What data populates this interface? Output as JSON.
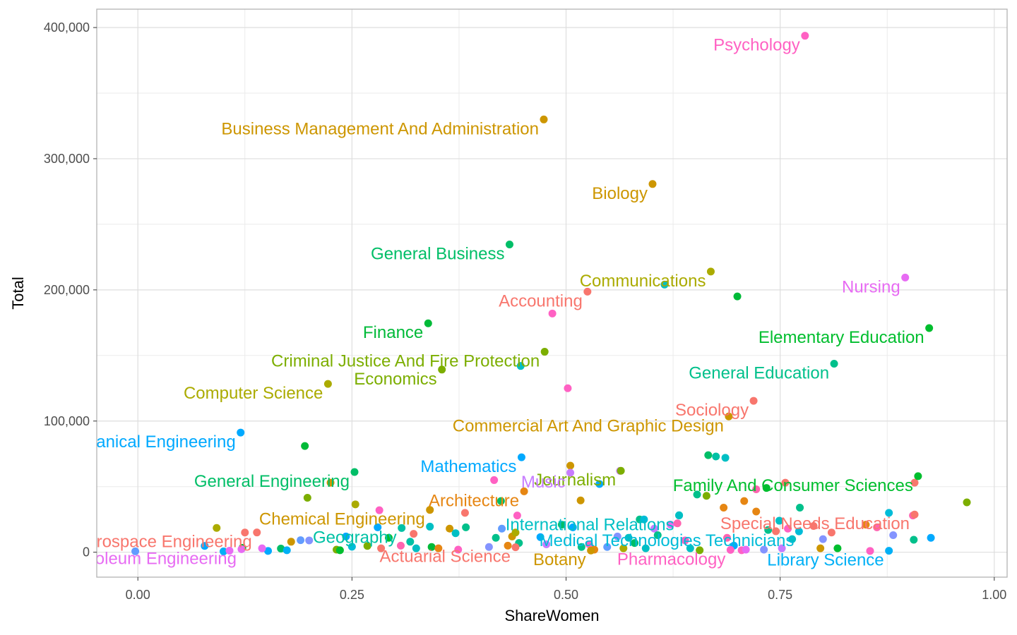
{
  "chart_data": {
    "type": "scatter",
    "title": "",
    "xlabel": "ShareWomen",
    "ylabel": "Total",
    "xlim": [
      -0.048,
      1.015
    ],
    "ylim": [
      -19000,
      414000
    ],
    "x_ticks": [
      {
        "value": 0,
        "label": "0.00"
      },
      {
        "value": 0.25,
        "label": "0.25"
      },
      {
        "value": 0.5,
        "label": "0.50"
      },
      {
        "value": 0.75,
        "label": "0.75"
      },
      {
        "value": 1.0,
        "label": "1.00"
      }
    ],
    "y_ticks": [
      {
        "value": 0,
        "label": "0"
      },
      {
        "value": 100000,
        "label": "100,000"
      },
      {
        "value": 200000,
        "label": "200,000"
      },
      {
        "value": 300000,
        "label": "300,000"
      },
      {
        "value": 400000,
        "label": "400,000"
      }
    ],
    "grid": true,
    "legend": "none",
    "labeled_points": [
      {
        "label": "Psychology",
        "x": 0.779,
        "y": 393735,
        "color": "#ff61c3"
      },
      {
        "label": "Business Management And Administration",
        "x": 0.474,
        "y": 329927,
        "color": "#cd9600"
      },
      {
        "label": "Biology",
        "x": 0.601,
        "y": 280709,
        "color": "#cd9600"
      },
      {
        "label": "General Business",
        "x": 0.434,
        "y": 234590,
        "color": "#00be67"
      },
      {
        "label": "Communications",
        "x": 0.669,
        "y": 213996,
        "color": "#abab00"
      },
      {
        "label": "Nursing",
        "x": 0.896,
        "y": 209394,
        "color": "#e76bf3"
      },
      {
        "label": "Accounting",
        "x": 0.525,
        "y": 198633,
        "color": "#f8766d"
      },
      {
        "label": "Finance",
        "x": 0.339,
        "y": 174506,
        "color": "#00ba38"
      },
      {
        "label": "Elementary Education",
        "x": 0.924,
        "y": 170862,
        "color": "#00be2e"
      },
      {
        "label": "Criminal Justice And Fire Protection",
        "x": 0.475,
        "y": 152824,
        "color": "#7cae00"
      },
      {
        "label": "General Education",
        "x": 0.813,
        "y": 143718,
        "color": "#00c08b"
      },
      {
        "label": "Economics",
        "x": 0.355,
        "y": 139247,
        "color": "#7cae00"
      },
      {
        "label": "Computer Science",
        "x": 0.222,
        "y": 128319,
        "color": "#abab00"
      },
      {
        "label": "Sociology",
        "x": 0.719,
        "y": 115433,
        "color": "#f8766d"
      },
      {
        "label": "Commercial Art And Graphic Design",
        "x": 0.69,
        "y": 103480,
        "color": "#cd9600"
      },
      {
        "label": "Mechanical Engineering",
        "x": 0.12,
        "y": 91227,
        "color": "#00a9ff"
      },
      {
        "label": "Mathematics",
        "x": 0.448,
        "y": 72397,
        "color": "#00a9ff"
      },
      {
        "label": "Journalism",
        "x": 0.564,
        "y": 62102,
        "color": "#7cae00"
      },
      {
        "label": "General Engineering",
        "x": 0.253,
        "y": 61152,
        "color": "#00be67"
      },
      {
        "label": "Music",
        "x": 0.505,
        "y": 60633,
        "color": "#c77cff"
      },
      {
        "label": "Family And Consumer Sciences",
        "x": 0.911,
        "y": 58001,
        "color": "#00be2e"
      },
      {
        "label": "Architecture",
        "x": 0.451,
        "y": 46420,
        "color": "#e68613"
      },
      {
        "label": "Chemical Engineering",
        "x": 0.341,
        "y": 32260,
        "color": "#cd9600"
      },
      {
        "label": "International Relations",
        "x": 0.632,
        "y": 28187,
        "color": "#00bfc4"
      },
      {
        "label": "Special Needs Education",
        "x": 0.907,
        "y": 28739,
        "color": "#f8766d"
      },
      {
        "label": "Geography",
        "x": 0.308,
        "y": 18480,
        "color": "#00c1a5"
      },
      {
        "label": "Aerospace Engineering",
        "x": 0.139,
        "y": 15058,
        "color": "#f8766d"
      },
      {
        "label": "Medical Technologies Technicians",
        "x": 0.772,
        "y": 15914,
        "color": "#00bcd8"
      },
      {
        "label": "Actuarial Science",
        "x": 0.441,
        "y": 3777,
        "color": "#f8766d"
      },
      {
        "label": "Botany",
        "x": 0.529,
        "y": 1329,
        "color": "#cd9600"
      },
      {
        "label": "Pharmacology",
        "x": 0.692,
        "y": 1762,
        "color": "#ff61c3"
      },
      {
        "label": "Library Science",
        "x": 0.877,
        "y": 1098,
        "color": "#00b0f6"
      },
      {
        "label": "Petroleum Engineering",
        "x": 0.121,
        "y": 2339,
        "color": "#e76bf3"
      }
    ],
    "points": [
      {
        "x": -0.003,
        "y": 720,
        "color": "#619cff"
      },
      {
        "x": 0.078,
        "y": 4800,
        "color": "#00a9ff"
      },
      {
        "x": 0.1,
        "y": 600,
        "color": "#00b0f6"
      },
      {
        "x": 0.107,
        "y": 1200,
        "color": "#e76bf3"
      },
      {
        "x": 0.122,
        "y": 3300,
        "color": "#00ba38"
      },
      {
        "x": 0.152,
        "y": 1000,
        "color": "#00a9ff"
      },
      {
        "x": 0.125,
        "y": 15000,
        "color": "#f8766d"
      },
      {
        "x": 0.092,
        "y": 18500,
        "color": "#abab00"
      },
      {
        "x": 0.167,
        "y": 2800,
        "color": "#00be67"
      },
      {
        "x": 0.179,
        "y": 8000,
        "color": "#cd9600"
      },
      {
        "x": 0.19,
        "y": 9200,
        "color": "#619cff"
      },
      {
        "x": 0.195,
        "y": 81000,
        "color": "#00ba38"
      },
      {
        "x": 0.198,
        "y": 41500,
        "color": "#7cae00"
      },
      {
        "x": 0.2,
        "y": 9000,
        "color": "#8494ff"
      },
      {
        "x": 0.174,
        "y": 1500,
        "color": "#00b0f6"
      },
      {
        "x": 0.145,
        "y": 3000,
        "color": "#e76bf3"
      },
      {
        "x": 0.225,
        "y": 53000,
        "color": "#cd9600"
      },
      {
        "x": 0.232,
        "y": 2000,
        "color": "#7cae00"
      },
      {
        "x": 0.236,
        "y": 1500,
        "color": "#00be2e"
      },
      {
        "x": 0.243,
        "y": 12000,
        "color": "#00a9ff"
      },
      {
        "x": 0.25,
        "y": 4200,
        "color": "#00bcd8"
      },
      {
        "x": 0.254,
        "y": 36500,
        "color": "#abab00"
      },
      {
        "x": 0.268,
        "y": 4800,
        "color": "#7cae00"
      },
      {
        "x": 0.28,
        "y": 19000,
        "color": "#00a9ff"
      },
      {
        "x": 0.282,
        "y": 32000,
        "color": "#ff61c3"
      },
      {
        "x": 0.284,
        "y": 3000,
        "color": "#f8766d"
      },
      {
        "x": 0.293,
        "y": 11000,
        "color": "#00be2e"
      },
      {
        "x": 0.307,
        "y": 5000,
        "color": "#ff64b0"
      },
      {
        "x": 0.318,
        "y": 8000,
        "color": "#00c1a5"
      },
      {
        "x": 0.322,
        "y": 14000,
        "color": "#f8766d"
      },
      {
        "x": 0.325,
        "y": 3000,
        "color": "#00bfc4"
      },
      {
        "x": 0.341,
        "y": 19500,
        "color": "#00bfc4"
      },
      {
        "x": 0.343,
        "y": 4000,
        "color": "#00ba38"
      },
      {
        "x": 0.351,
        "y": 3000,
        "color": "#e68613"
      },
      {
        "x": 0.364,
        "y": 18000,
        "color": "#cd9600"
      },
      {
        "x": 0.371,
        "y": 14500,
        "color": "#00bfc4"
      },
      {
        "x": 0.374,
        "y": 2000,
        "color": "#ff61c3"
      },
      {
        "x": 0.382,
        "y": 30000,
        "color": "#f8766d"
      },
      {
        "x": 0.383,
        "y": 19000,
        "color": "#00c08b"
      },
      {
        "x": 0.41,
        "y": 4000,
        "color": "#8494ff"
      },
      {
        "x": 0.416,
        "y": 55000,
        "color": "#ff61c3"
      },
      {
        "x": 0.418,
        "y": 11000,
        "color": "#00c08b"
      },
      {
        "x": 0.424,
        "y": 39000,
        "color": "#00be67"
      },
      {
        "x": 0.425,
        "y": 18000,
        "color": "#619cff"
      },
      {
        "x": 0.432,
        "y": 5000,
        "color": "#e68613"
      },
      {
        "x": 0.437,
        "y": 12000,
        "color": "#cd9600"
      },
      {
        "x": 0.441,
        "y": 15000,
        "color": "#abab00"
      },
      {
        "x": 0.443,
        "y": 28000,
        "color": "#ff61c3"
      },
      {
        "x": 0.445,
        "y": 7000,
        "color": "#00c08b"
      },
      {
        "x": 0.447,
        "y": 142000,
        "color": "#00bfc4"
      },
      {
        "x": 0.47,
        "y": 11500,
        "color": "#00a9ff"
      },
      {
        "x": 0.477,
        "y": 6000,
        "color": "#c77cff"
      },
      {
        "x": 0.484,
        "y": 182000,
        "color": "#ff61c3"
      },
      {
        "x": 0.502,
        "y": 125000,
        "color": "#ff61c3"
      },
      {
        "x": 0.505,
        "y": 66000,
        "color": "#cd9600"
      },
      {
        "x": 0.495,
        "y": 21000,
        "color": "#00be67"
      },
      {
        "x": 0.508,
        "y": 19000,
        "color": "#00a9ff"
      },
      {
        "x": 0.517,
        "y": 39500,
        "color": "#cd9600"
      },
      {
        "x": 0.518,
        "y": 4000,
        "color": "#00c08b"
      },
      {
        "x": 0.527,
        "y": 6000,
        "color": "#ff61c3"
      },
      {
        "x": 0.533,
        "y": 2000,
        "color": "#e68613"
      },
      {
        "x": 0.539,
        "y": 52000,
        "color": "#00a9ff"
      },
      {
        "x": 0.548,
        "y": 4000,
        "color": "#619cff"
      },
      {
        "x": 0.56,
        "y": 12000,
        "color": "#8494ff"
      },
      {
        "x": 0.563,
        "y": 62000,
        "color": "#c77cff"
      },
      {
        "x": 0.567,
        "y": 3000,
        "color": "#abab00"
      },
      {
        "x": 0.573,
        "y": 11000,
        "color": "#00bfc4"
      },
      {
        "x": 0.58,
        "y": 7000,
        "color": "#00be67"
      },
      {
        "x": 0.586,
        "y": 25000,
        "color": "#00c08b"
      },
      {
        "x": 0.591,
        "y": 25000,
        "color": "#00bcd8"
      },
      {
        "x": 0.593,
        "y": 3000,
        "color": "#00bfc4"
      },
      {
        "x": 0.603,
        "y": 18000,
        "color": "#c77cff"
      },
      {
        "x": 0.607,
        "y": 13000,
        "color": "#00c08b"
      },
      {
        "x": 0.615,
        "y": 204000,
        "color": "#00bfc4"
      },
      {
        "x": 0.622,
        "y": 21000,
        "color": "#e76bf3"
      },
      {
        "x": 0.63,
        "y": 22000,
        "color": "#ff64b0"
      },
      {
        "x": 0.632,
        "y": 28000,
        "color": "#00bfc4"
      },
      {
        "x": 0.639,
        "y": 9000,
        "color": "#ff61c3"
      },
      {
        "x": 0.645,
        "y": 3000,
        "color": "#00bfc4"
      },
      {
        "x": 0.653,
        "y": 44000,
        "color": "#00c08b"
      },
      {
        "x": 0.656,
        "y": 1500,
        "color": "#7cae00"
      },
      {
        "x": 0.664,
        "y": 43000,
        "color": "#7cae00"
      },
      {
        "x": 0.666,
        "y": 74000,
        "color": "#00be67"
      },
      {
        "x": 0.675,
        "y": 73000,
        "color": "#00c1a5"
      },
      {
        "x": 0.686,
        "y": 72000,
        "color": "#00bfc4"
      },
      {
        "x": 0.684,
        "y": 34000,
        "color": "#e68613"
      },
      {
        "x": 0.688,
        "y": 11000,
        "color": "#ff64b0"
      },
      {
        "x": 0.696,
        "y": 5000,
        "color": "#00a9ff"
      },
      {
        "x": 0.7,
        "y": 195000,
        "color": "#00ba38"
      },
      {
        "x": 0.705,
        "y": 1500,
        "color": "#ff61c3"
      },
      {
        "x": 0.708,
        "y": 39000,
        "color": "#e68613"
      },
      {
        "x": 0.71,
        "y": 2000,
        "color": "#e76bf3"
      },
      {
        "x": 0.722,
        "y": 31000,
        "color": "#e68613"
      },
      {
        "x": 0.722,
        "y": 48000,
        "color": "#ff64b0"
      },
      {
        "x": 0.731,
        "y": 2000,
        "color": "#8494ff"
      },
      {
        "x": 0.734,
        "y": 49000,
        "color": "#00be2e"
      },
      {
        "x": 0.736,
        "y": 17000,
        "color": "#00c08b"
      },
      {
        "x": 0.745,
        "y": 16000,
        "color": "#f8766d"
      },
      {
        "x": 0.749,
        "y": 24000,
        "color": "#00bfc4"
      },
      {
        "x": 0.752,
        "y": 3000,
        "color": "#c77cff"
      },
      {
        "x": 0.756,
        "y": 53000,
        "color": "#f8766d"
      },
      {
        "x": 0.759,
        "y": 18000,
        "color": "#ff61c3"
      },
      {
        "x": 0.764,
        "y": 10000,
        "color": "#00bfc4"
      },
      {
        "x": 0.773,
        "y": 34000,
        "color": "#00c08b"
      },
      {
        "x": 0.789,
        "y": 20000,
        "color": "#f8766d"
      },
      {
        "x": 0.797,
        "y": 3000,
        "color": "#cd9600"
      },
      {
        "x": 0.8,
        "y": 10000,
        "color": "#8494ff"
      },
      {
        "x": 0.81,
        "y": 15000,
        "color": "#f8766d"
      },
      {
        "x": 0.817,
        "y": 3000,
        "color": "#00be2e"
      },
      {
        "x": 0.85,
        "y": 21000,
        "color": "#e68613"
      },
      {
        "x": 0.855,
        "y": 1000,
        "color": "#ff61c3"
      },
      {
        "x": 0.863,
        "y": 19000,
        "color": "#ff64b0"
      },
      {
        "x": 0.877,
        "y": 30000,
        "color": "#00bcd8"
      },
      {
        "x": 0.882,
        "y": 13000,
        "color": "#8494ff"
      },
      {
        "x": 0.905,
        "y": 28000,
        "color": "#ff64b0"
      },
      {
        "x": 0.906,
        "y": 9500,
        "color": "#00c08b"
      },
      {
        "x": 0.907,
        "y": 53000,
        "color": "#f8766d"
      },
      {
        "x": 0.926,
        "y": 11000,
        "color": "#00a9ff"
      },
      {
        "x": 0.968,
        "y": 38000,
        "color": "#7cae00"
      }
    ]
  }
}
